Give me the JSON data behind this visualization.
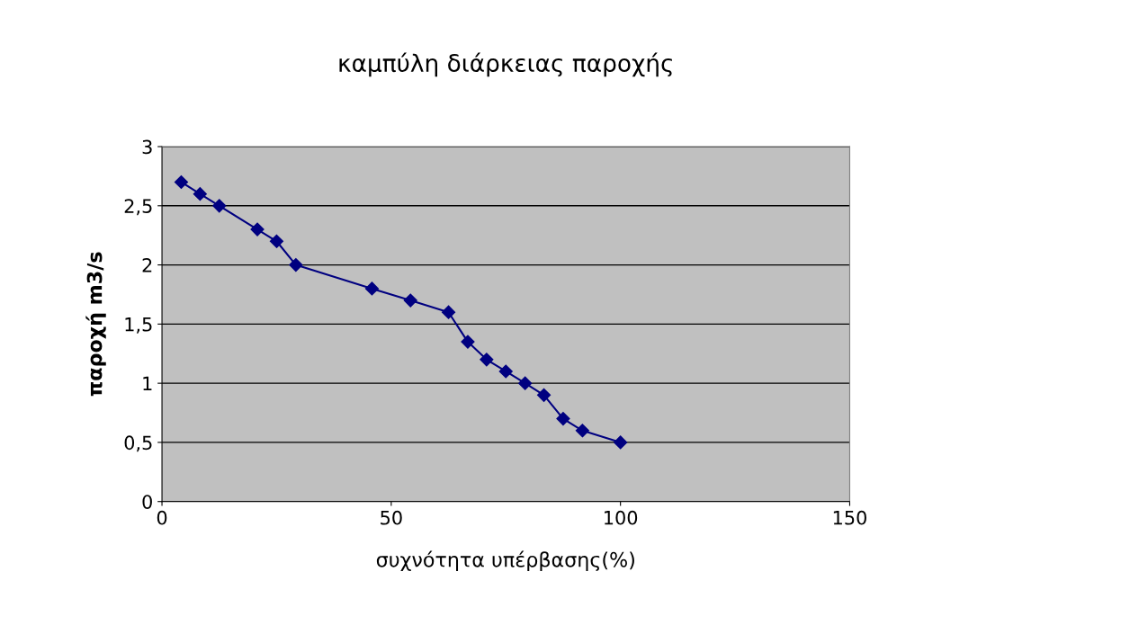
{
  "chart_data": {
    "type": "line",
    "title": "καμπύλη διάρκειας παροχής",
    "xlabel": "συχνότητα υπέρβασης(%)",
    "ylabel": "παροχή m3/s",
    "x": [
      4.2,
      8.3,
      12.5,
      20.8,
      25,
      29.2,
      45.8,
      54.2,
      62.5,
      66.7,
      70.8,
      75,
      79.2,
      83.3,
      87.5,
      91.7,
      100
    ],
    "series": [
      {
        "color": "#000080",
        "values": [
          2.7,
          2.6,
          2.5,
          2.3,
          2.2,
          2.0,
          1.8,
          1.7,
          1.6,
          1.35,
          1.2,
          1.1,
          1.0,
          0.9,
          0.7,
          0.6,
          0.5
        ]
      }
    ],
    "xlim": [
      0,
      150
    ],
    "xticks": [
      0,
      50,
      100,
      150
    ],
    "ylim": [
      0,
      3
    ],
    "yticks": [
      0,
      {
        "value": 0.5,
        "label": "0,5"
      },
      1,
      {
        "value": 1.5,
        "label": "1,5"
      },
      2,
      {
        "value": 2.5,
        "label": "2,5"
      },
      3
    ],
    "grid": "y",
    "marker": "diamond",
    "line_style": "solid"
  }
}
